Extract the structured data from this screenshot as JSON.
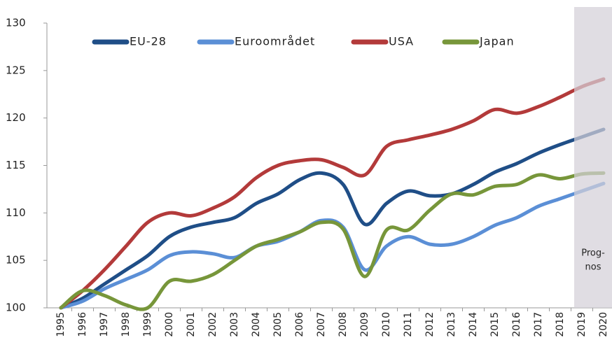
{
  "chart_data": {
    "type": "line",
    "categories": [
      "1995",
      "1996",
      "1997",
      "1998",
      "1999",
      "2000",
      "2001",
      "2002",
      "2003",
      "2004",
      "2005",
      "2006",
      "2007",
      "2008",
      "2009",
      "2010",
      "2011",
      "2012",
      "2013",
      "2014",
      "2015",
      "2016",
      "2017",
      "2018",
      "2019",
      "2020"
    ],
    "series": [
      {
        "name": "EU-28",
        "color": "#1f4e87",
        "values": [
          100,
          101,
          102.5,
          104,
          105.5,
          107.5,
          108.5,
          109,
          109.5,
          111,
          112,
          113.5,
          114.2,
          113,
          108.8,
          111,
          112.3,
          111.8,
          112,
          113,
          114.3,
          115.2,
          116.3,
          117.2,
          118,
          118.8
        ]
      },
      {
        "name": "Euroområdet",
        "color": "#5b8fd6",
        "values": [
          100,
          100.7,
          102,
          103,
          104,
          105.5,
          105.9,
          105.7,
          105.3,
          106.5,
          107,
          108,
          109.2,
          108.5,
          104,
          106.5,
          107.5,
          106.7,
          106.7,
          107.5,
          108.7,
          109.5,
          110.7,
          111.5,
          112.3,
          113.1
        ]
      },
      {
        "name": "USA",
        "color": "#b33a3a",
        "values": [
          100,
          101.8,
          104,
          106.5,
          109,
          110,
          109.7,
          110.5,
          111.7,
          113.7,
          115,
          115.5,
          115.6,
          114.8,
          114,
          117,
          117.7,
          118.2,
          118.8,
          119.7,
          120.9,
          120.5,
          121.2,
          122.2,
          123.3,
          124.1
        ]
      },
      {
        "name": "Japan",
        "color": "#77963a",
        "values": [
          100,
          101.8,
          101.3,
          100.3,
          100,
          102.8,
          102.8,
          103.5,
          105,
          106.5,
          107.2,
          108,
          109,
          108.3,
          103.3,
          108.2,
          108.2,
          110.3,
          112,
          111.9,
          112.8,
          113,
          114,
          113.6,
          114.1,
          114.2
        ]
      }
    ],
    "ylim": [
      100,
      130
    ],
    "yticks": [
      100,
      105,
      110,
      115,
      120,
      125,
      130
    ],
    "annotation": [
      "Prog-",
      "nos"
    ],
    "legend": "top"
  }
}
